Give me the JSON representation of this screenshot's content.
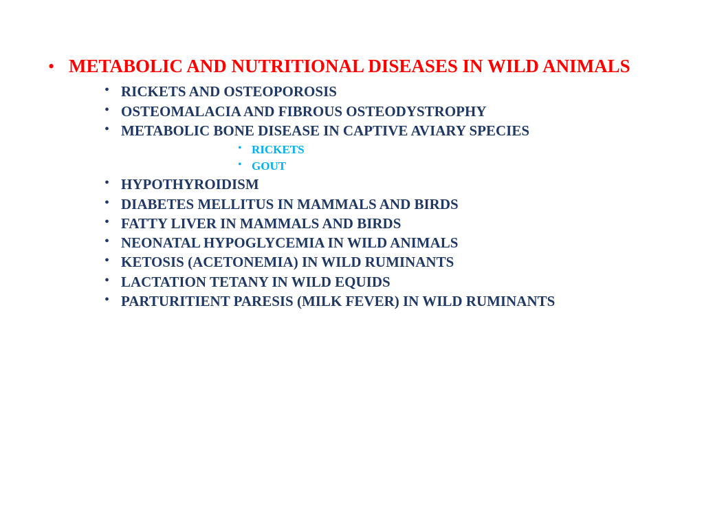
{
  "slide": {
    "title": "METABOLIC AND NUTRITIONAL DISEASES IN WILD ANIMALS",
    "title_color": "#ff0000",
    "title_fontsize": 27,
    "level2_color": "#1f3864",
    "level2_fontsize": 21,
    "level3_color": "#00b0f0",
    "level3_fontsize": 17,
    "background_color": "#ffffff",
    "items": [
      {
        "text": "RICKETS AND OSTEOPOROSIS"
      },
      {
        "text": "OSTEOMALACIA AND FIBROUS OSTEODYSTROPHY"
      },
      {
        "text": "METABOLIC BONE DISEASE IN CAPTIVE AVIARY SPECIES",
        "subitems": [
          {
            "text": "RICKETS"
          },
          {
            "text": "GOUT"
          }
        ]
      },
      {
        "text": "HYPOTHYROIDISM"
      },
      {
        "text": "DIABETES MELLITUS IN MAMMALS AND BIRDS"
      },
      {
        "text": "FATTY LIVER IN MAMMALS AND BIRDS"
      },
      {
        "text": "NEONATAL HYPOGLYCEMIA IN WILD ANIMALS"
      },
      {
        "text": "KETOSIS (ACETONEMIA) IN WILD RUMINANTS"
      },
      {
        "text": "LACTATION TETANY IN WILD EQUIDS"
      },
      {
        "text": "PARTURITIENT PARESIS (MILK FEVER) IN WILD RUMINANTS"
      }
    ]
  }
}
